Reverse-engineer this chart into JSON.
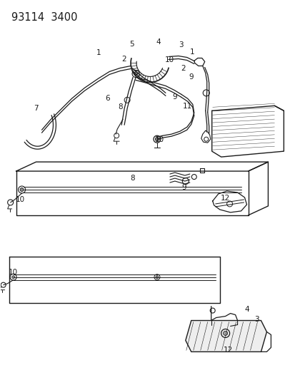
{
  "title": "93114  3400",
  "bg_color": "#ffffff",
  "line_color": "#1a1a1a",
  "title_fontsize": 10.5,
  "label_fontsize": 7.5,
  "figsize": [
    4.14,
    5.33
  ],
  "dpi": 100
}
